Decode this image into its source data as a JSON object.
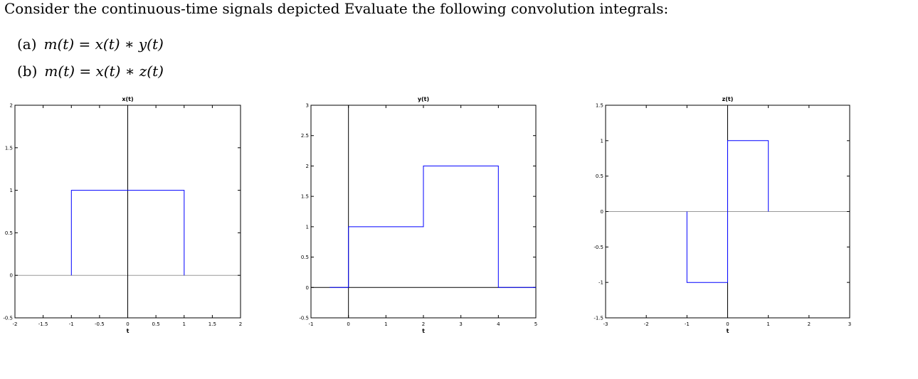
{
  "problem": {
    "intro": "Consider the continuous-time signals depicted Evaluate the following convolution integrals:",
    "parts": [
      {
        "label": "(a)",
        "equation": "m(t) = x(t) ∗ y(t)"
      },
      {
        "label": "(b)",
        "equation": "m(t) = x(t) ∗ z(t)"
      }
    ]
  },
  "chart_data": [
    {
      "type": "line",
      "title": "x(t)",
      "xlabel": "t",
      "ylabel": "",
      "xlim": [
        -2,
        2
      ],
      "ylim": [
        -0.5,
        2
      ],
      "xticks": [
        -2,
        -1.5,
        -1,
        -0.5,
        0,
        0.5,
        1,
        1.5,
        2
      ],
      "yticks": [
        -0.5,
        0,
        0.5,
        1,
        1.5,
        2
      ],
      "xtick_labels": [
        "-2",
        "-1.5",
        "-1",
        "-0.5",
        "0",
        "0.5",
        "1",
        "1.5",
        "2"
      ],
      "ytick_labels": [
        "-0.5",
        "0",
        "0.5",
        "1",
        "1.5",
        "2"
      ],
      "grid": false,
      "series": [
        {
          "x": [
            -1,
            -1,
            1,
            1
          ],
          "y": [
            0,
            1,
            1,
            0
          ],
          "color": "#0000ff"
        }
      ]
    },
    {
      "type": "line",
      "title": "y(t)",
      "xlabel": "t",
      "ylabel": "",
      "xlim": [
        -1,
        5
      ],
      "ylim": [
        -0.5,
        3
      ],
      "xticks": [
        -1,
        0,
        1,
        2,
        3,
        4,
        5
      ],
      "yticks": [
        -0.5,
        0,
        0.5,
        1,
        1.5,
        2,
        2.5,
        3
      ],
      "xtick_labels": [
        "-1",
        "0",
        "1",
        "2",
        "3",
        "4",
        "5"
      ],
      "ytick_labels": [
        "-0.5",
        "0",
        "0.5",
        "1",
        "1.5",
        "2",
        "2.5",
        "3"
      ],
      "grid": false,
      "series": [
        {
          "x": [
            -0.5,
            0,
            0,
            2,
            2,
            4,
            4,
            5
          ],
          "y": [
            0,
            0,
            1,
            1,
            2,
            2,
            0,
            0
          ],
          "color": "#0000ff"
        }
      ]
    },
    {
      "type": "line",
      "title": "z(t)",
      "xlabel": "t",
      "ylabel": "",
      "xlim": [
        -3,
        3
      ],
      "ylim": [
        -1.5,
        1.5
      ],
      "xticks": [
        -3,
        -2,
        -1,
        0,
        1,
        2,
        3
      ],
      "yticks": [
        -1.5,
        -1,
        -0.5,
        0,
        0.5,
        1,
        1.5
      ],
      "xtick_labels": [
        "-3",
        "-2",
        "-1",
        "0",
        "1",
        "2",
        "3"
      ],
      "ytick_labels": [
        "-1.5",
        "-1",
        "-0.5",
        "0",
        "0.5",
        "1",
        "1.5"
      ],
      "grid": false,
      "series": [
        {
          "x": [
            -1,
            -1,
            0,
            0,
            1,
            1
          ],
          "y": [
            0,
            -1,
            -1,
            1,
            1,
            0
          ],
          "color": "#0000ff"
        }
      ]
    }
  ]
}
